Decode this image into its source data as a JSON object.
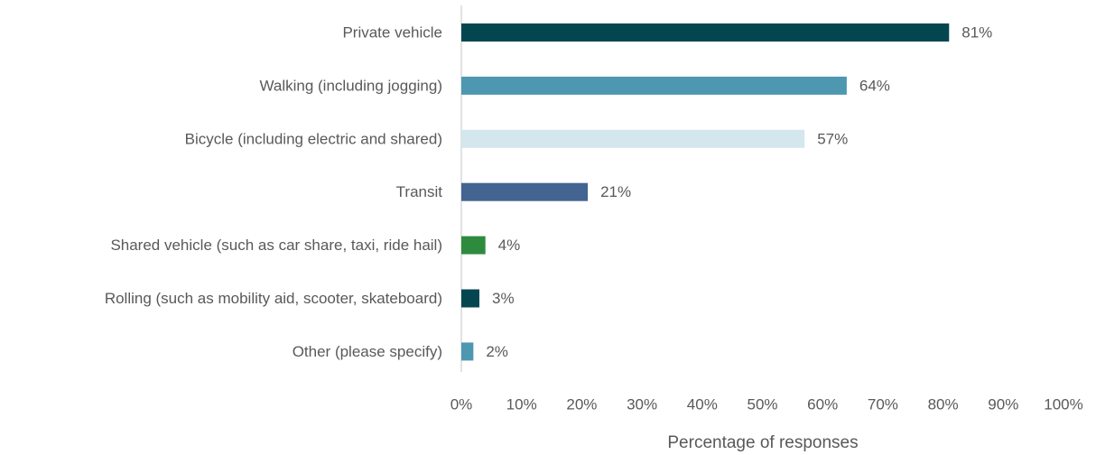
{
  "chart_data": {
    "type": "bar",
    "orientation": "horizontal",
    "categories": [
      "Private vehicle",
      "Walking (including jogging)",
      "Bicycle (including electric and shared)",
      "Transit",
      "Shared vehicle (such as car share, taxi, ride hail)",
      "Rolling (such as mobility aid, scooter, skateboard)",
      "Other (please specify)"
    ],
    "values": [
      81,
      64,
      57,
      21,
      4,
      3,
      2
    ],
    "value_labels": [
      "81%",
      "64%",
      "57%",
      "21%",
      "4%",
      "3%",
      "2%"
    ],
    "colors": [
      "#034650",
      "#4e97b1",
      "#d4e6ee",
      "#436490",
      "#2e8b3e",
      "#034650",
      "#4e97b1"
    ],
    "xlabel": "Percentage of responses",
    "xlim": [
      0,
      100
    ],
    "xticks": [
      {
        "value": 0,
        "label": "0%"
      },
      {
        "value": 10,
        "label": "10%"
      },
      {
        "value": 20,
        "label": "20%"
      },
      {
        "value": 30,
        "label": "30%"
      },
      {
        "value": 40,
        "label": "40%"
      },
      {
        "value": 50,
        "label": "50%"
      },
      {
        "value": 60,
        "label": "60%"
      },
      {
        "value": 70,
        "label": "70%"
      },
      {
        "value": 80,
        "label": "80%"
      },
      {
        "value": 90,
        "label": "90%"
      },
      {
        "value": 100,
        "label": "100%"
      }
    ],
    "grid": false
  }
}
